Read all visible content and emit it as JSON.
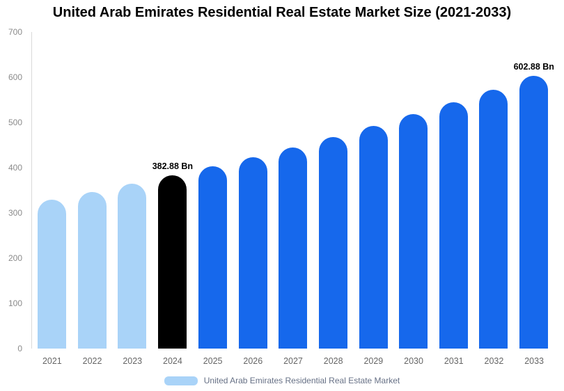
{
  "title": "United Arab Emirates Residential Real Estate Market Size (2021-2033)",
  "legend": {
    "label": "United Arab Emirates Residential Real Estate Market",
    "swatch_color": "#a9d3f8"
  },
  "chart_data": {
    "type": "bar",
    "title": "United Arab Emirates Residential Real Estate Market Size (2021-2033)",
    "categories": [
      "2021",
      "2022",
      "2023",
      "2024",
      "2025",
      "2026",
      "2027",
      "2028",
      "2029",
      "2030",
      "2031",
      "2032",
      "2033"
    ],
    "values": [
      329.2,
      346.2,
      364.1,
      382.88,
      402.7,
      423.4,
      445.3,
      468.3,
      492.5,
      518.0,
      544.7,
      572.9,
      602.88
    ],
    "bar_colors": [
      "#a9d3f8",
      "#a9d3f8",
      "#a9d3f8",
      "#000000",
      "#1668ec",
      "#1668ec",
      "#1668ec",
      "#1668ec",
      "#1668ec",
      "#1668ec",
      "#1668ec",
      "#1668ec",
      "#1668ec"
    ],
    "annotations": [
      {
        "category": "2024",
        "text": "382.88 Bn"
      },
      {
        "category": "2033",
        "text": "602.88 Bn"
      }
    ],
    "y_ticks": [
      0,
      100,
      200,
      300,
      400,
      500,
      600,
      700
    ],
    "ylim": [
      0,
      700
    ],
    "xlabel": "",
    "ylabel": "",
    "grid": false,
    "legend_position": "bottom",
    "colors": {
      "historical": "#a9d3f8",
      "base_year": "#000000",
      "forecast": "#1668ec",
      "axis_line": "#d9d9d9"
    }
  }
}
